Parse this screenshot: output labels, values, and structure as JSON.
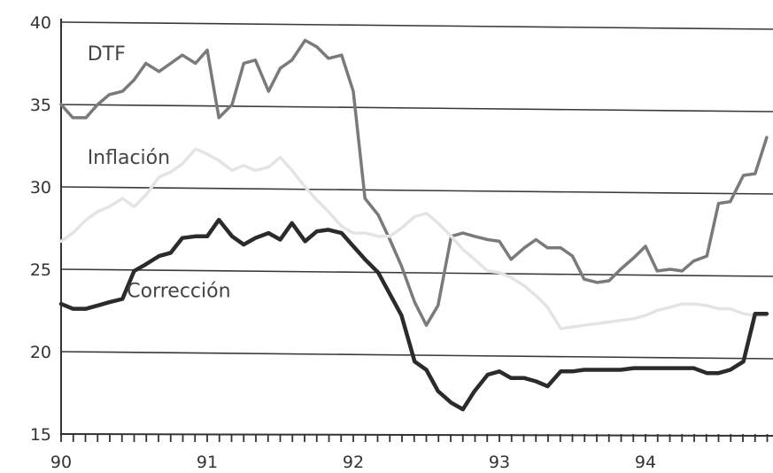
{
  "chart_data": {
    "type": "line",
    "title": "",
    "xlabel": "",
    "ylabel": "",
    "ylim": [
      15,
      40
    ],
    "xlim": [
      90,
      94.83
    ],
    "y_ticks": [
      "15",
      "20",
      "25",
      "30",
      "35",
      "40"
    ],
    "x_ticks": [
      "90",
      "91",
      "92",
      "93",
      "94"
    ],
    "minor_ticks_per_year": 12,
    "grid": "horizontal",
    "legend": "inline labels",
    "series": [
      {
        "name": "DTF",
        "color": "#7a7a7a",
        "stroke": "medium",
        "label_anchor": [
          90.18,
          37.7
        ],
        "points": [
          [
            90.0,
            35.0
          ],
          [
            90.08,
            34.2
          ],
          [
            90.17,
            34.2
          ],
          [
            90.25,
            35.0
          ],
          [
            90.33,
            35.6
          ],
          [
            90.42,
            35.8
          ],
          [
            90.5,
            36.5
          ],
          [
            90.58,
            37.5
          ],
          [
            90.67,
            37.0
          ],
          [
            90.75,
            37.5
          ],
          [
            90.83,
            38.0
          ],
          [
            90.92,
            37.5
          ],
          [
            91.0,
            38.3
          ],
          [
            91.08,
            34.2
          ],
          [
            91.17,
            35.0
          ],
          [
            91.25,
            37.5
          ],
          [
            91.33,
            37.7
          ],
          [
            91.42,
            35.8
          ],
          [
            91.5,
            37.2
          ],
          [
            91.58,
            37.7
          ],
          [
            91.67,
            38.9
          ],
          [
            91.75,
            38.5
          ],
          [
            91.83,
            37.8
          ],
          [
            91.92,
            38.0
          ],
          [
            92.0,
            35.8
          ],
          [
            92.08,
            29.3
          ],
          [
            92.17,
            28.3
          ],
          [
            92.25,
            26.8
          ],
          [
            92.33,
            25.2
          ],
          [
            92.42,
            23.0
          ],
          [
            92.5,
            21.6
          ],
          [
            92.58,
            22.8
          ],
          [
            92.67,
            27.0
          ],
          [
            92.75,
            27.2
          ],
          [
            92.83,
            27.0
          ],
          [
            92.92,
            26.8
          ],
          [
            93.0,
            26.7
          ],
          [
            93.08,
            25.6
          ],
          [
            93.17,
            26.3
          ],
          [
            93.25,
            26.8
          ],
          [
            93.33,
            26.3
          ],
          [
            93.42,
            26.3
          ],
          [
            93.5,
            25.8
          ],
          [
            93.58,
            24.4
          ],
          [
            93.67,
            24.2
          ],
          [
            93.75,
            24.3
          ],
          [
            93.83,
            25.0
          ],
          [
            93.92,
            25.7
          ],
          [
            94.0,
            26.4
          ],
          [
            94.08,
            24.9
          ],
          [
            94.17,
            25.0
          ],
          [
            94.25,
            24.9
          ],
          [
            94.33,
            25.5
          ],
          [
            94.42,
            25.8
          ],
          [
            94.5,
            29.0
          ],
          [
            94.58,
            29.1
          ],
          [
            94.67,
            30.7
          ],
          [
            94.75,
            30.8
          ],
          [
            94.83,
            33.0
          ]
        ]
      },
      {
        "name": "Inflación",
        "color": "#e4e4e4",
        "stroke": "medium",
        "label_anchor": [
          90.18,
          31.4
        ],
        "points": [
          [
            90.0,
            26.7
          ],
          [
            90.08,
            27.2
          ],
          [
            90.17,
            28.0
          ],
          [
            90.25,
            28.5
          ],
          [
            90.33,
            28.8
          ],
          [
            90.42,
            29.3
          ],
          [
            90.5,
            28.8
          ],
          [
            90.58,
            29.5
          ],
          [
            90.67,
            30.6
          ],
          [
            90.75,
            30.9
          ],
          [
            90.83,
            31.4
          ],
          [
            90.92,
            32.3
          ],
          [
            91.0,
            32.0
          ],
          [
            91.08,
            31.6
          ],
          [
            91.17,
            31.0
          ],
          [
            91.25,
            31.3
          ],
          [
            91.33,
            31.0
          ],
          [
            91.42,
            31.2
          ],
          [
            91.5,
            31.8
          ],
          [
            91.58,
            31.0
          ],
          [
            91.67,
            30.0
          ],
          [
            91.75,
            29.2
          ],
          [
            91.83,
            28.5
          ],
          [
            91.92,
            27.6
          ],
          [
            92.0,
            27.2
          ],
          [
            92.08,
            27.2
          ],
          [
            92.17,
            27.0
          ],
          [
            92.25,
            27.0
          ],
          [
            92.33,
            27.5
          ],
          [
            92.42,
            28.2
          ],
          [
            92.5,
            28.4
          ],
          [
            92.58,
            27.8
          ],
          [
            92.67,
            27.0
          ],
          [
            92.75,
            26.2
          ],
          [
            92.83,
            25.6
          ],
          [
            92.92,
            24.9
          ],
          [
            93.0,
            24.8
          ],
          [
            93.08,
            24.5
          ],
          [
            93.17,
            24.0
          ],
          [
            93.25,
            23.4
          ],
          [
            93.33,
            22.7
          ],
          [
            93.42,
            21.4
          ],
          [
            93.5,
            21.5
          ],
          [
            93.58,
            21.6
          ],
          [
            93.67,
            21.7
          ],
          [
            93.75,
            21.8
          ],
          [
            93.83,
            21.9
          ],
          [
            93.92,
            22.0
          ],
          [
            94.0,
            22.2
          ],
          [
            94.08,
            22.5
          ],
          [
            94.17,
            22.7
          ],
          [
            94.25,
            22.9
          ],
          [
            94.33,
            22.9
          ],
          [
            94.42,
            22.8
          ],
          [
            94.5,
            22.6
          ],
          [
            94.58,
            22.6
          ],
          [
            94.67,
            22.3
          ],
          [
            94.75,
            22.2
          ],
          [
            94.83,
            22.2
          ]
        ]
      },
      {
        "name": "Corrección",
        "color": "#2b2b2b",
        "stroke": "heavy",
        "label_anchor": [
          90.45,
          23.3
        ],
        "points": [
          [
            90.0,
            22.9
          ],
          [
            90.08,
            22.6
          ],
          [
            90.17,
            22.6
          ],
          [
            90.25,
            22.8
          ],
          [
            90.33,
            23.0
          ],
          [
            90.42,
            23.2
          ],
          [
            90.5,
            24.9
          ],
          [
            90.58,
            25.3
          ],
          [
            90.67,
            25.8
          ],
          [
            90.75,
            26.0
          ],
          [
            90.83,
            26.9
          ],
          [
            90.92,
            27.0
          ],
          [
            91.0,
            27.0
          ],
          [
            91.08,
            28.0
          ],
          [
            91.17,
            27.0
          ],
          [
            91.25,
            26.5
          ],
          [
            91.33,
            26.9
          ],
          [
            91.42,
            27.2
          ],
          [
            91.5,
            26.8
          ],
          [
            91.58,
            27.8
          ],
          [
            91.67,
            26.7
          ],
          [
            91.75,
            27.3
          ],
          [
            91.83,
            27.4
          ],
          [
            91.92,
            27.2
          ],
          [
            92.0,
            26.4
          ],
          [
            92.08,
            25.6
          ],
          [
            92.17,
            24.8
          ],
          [
            92.25,
            23.5
          ],
          [
            92.33,
            22.2
          ],
          [
            92.42,
            19.4
          ],
          [
            92.5,
            18.9
          ],
          [
            92.58,
            17.6
          ],
          [
            92.67,
            16.9
          ],
          [
            92.75,
            16.5
          ],
          [
            92.83,
            17.6
          ],
          [
            92.92,
            18.6
          ],
          [
            93.0,
            18.8
          ],
          [
            93.08,
            18.4
          ],
          [
            93.17,
            18.4
          ],
          [
            93.25,
            18.2
          ],
          [
            93.33,
            17.9
          ],
          [
            93.42,
            18.8
          ],
          [
            93.5,
            18.8
          ],
          [
            93.58,
            18.9
          ],
          [
            93.67,
            18.9
          ],
          [
            93.75,
            18.9
          ],
          [
            93.83,
            18.9
          ],
          [
            93.92,
            19.0
          ],
          [
            94.0,
            19.0
          ],
          [
            94.08,
            19.0
          ],
          [
            94.17,
            19.0
          ],
          [
            94.25,
            19.0
          ],
          [
            94.33,
            19.0
          ],
          [
            94.42,
            18.7
          ],
          [
            94.5,
            18.7
          ],
          [
            94.58,
            18.9
          ],
          [
            94.67,
            19.4
          ],
          [
            94.75,
            22.3
          ],
          [
            94.83,
            22.3
          ]
        ]
      }
    ]
  }
}
